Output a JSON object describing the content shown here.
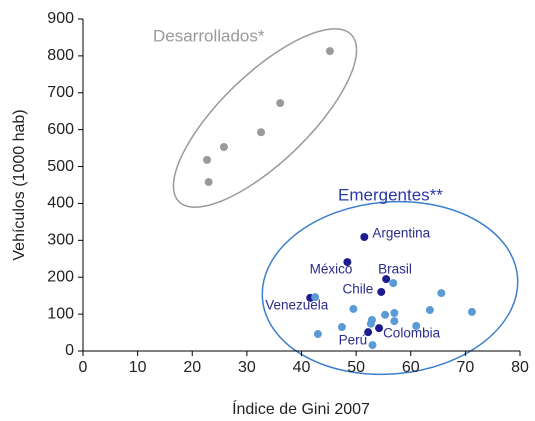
{
  "chart_data": {
    "type": "scatter",
    "x_label": "Índice de Gini 2007",
    "y_label": "Vehículos (1000 hab)",
    "xlim": [
      0,
      80
    ],
    "xticks": [
      0,
      10,
      20,
      30,
      40,
      50,
      60,
      70,
      80
    ],
    "ylim": [
      0,
      900
    ],
    "yticks": [
      0,
      100,
      200,
      300,
      400,
      500,
      600,
      700,
      800,
      900
    ],
    "annotations": [
      "Desarrollados*",
      "Emergentes**"
    ],
    "series": [
      {
        "color": "#9a9a9a",
        "x": [
          22.7,
          23,
          25.8,
          32.6,
          36.1,
          45.2
        ],
        "values": [
          518,
          458,
          553,
          593,
          672,
          813
        ]
      },
      {
        "color": "#1c1c8e",
        "labels": [
          "Argentina",
          "México",
          "Brasil",
          "Chile",
          "Venezuela",
          "Perú",
          "Colombia"
        ],
        "x": [
          51.5,
          48.4,
          55.5,
          54.6,
          41.6,
          52.2,
          54.2
        ],
        "values": [
          309,
          241,
          195,
          160,
          144,
          51,
          62
        ]
      },
      {
        "color": "#5b9bd5",
        "x": [
          42.5,
          43,
          47.4,
          49.5,
          52.9,
          52.7,
          53,
          55.3,
          56.8,
          57,
          57,
          61,
          63.5,
          65.6,
          71.2
        ],
        "values": [
          146,
          46,
          65,
          114,
          84,
          74,
          16,
          98,
          184,
          81,
          103,
          68,
          111,
          157,
          106
        ]
      }
    ]
  }
}
